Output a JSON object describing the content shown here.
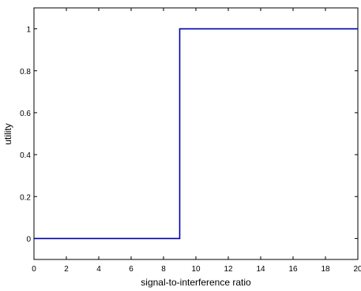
{
  "chart_data": {
    "type": "line",
    "title": "",
    "xlabel": "signal-to-interference ratio",
    "ylabel": "utility",
    "xlim": [
      0,
      20
    ],
    "ylim": [
      -0.1,
      1.1
    ],
    "xticks": [
      0,
      2,
      4,
      6,
      8,
      10,
      12,
      14,
      16,
      18,
      20
    ],
    "xtick_labels": [
      "0",
      "2",
      "4",
      "6",
      "8",
      "10",
      "12",
      "14",
      "16",
      "18",
      "20"
    ],
    "yticks": [
      0,
      0.2,
      0.4,
      0.6,
      0.8,
      1
    ],
    "ytick_labels": [
      "0",
      "0.2",
      "0.4",
      "0.6",
      "0.8",
      "1"
    ],
    "grid": false,
    "series": [
      {
        "color": "#0000aa",
        "x": [
          0,
          9,
          9,
          20
        ],
        "y": [
          0,
          0,
          1,
          1
        ]
      }
    ]
  }
}
